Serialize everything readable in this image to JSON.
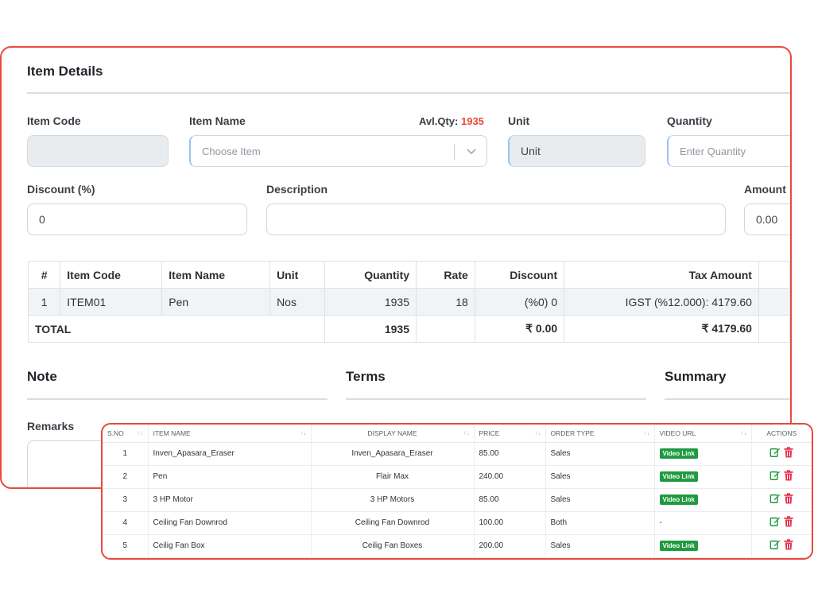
{
  "item_details": {
    "title": "Item Details",
    "labels": {
      "item_code": "Item Code",
      "item_name": "Item Name",
      "avl_qty_label": "Avl.Qty:",
      "avl_qty_value": "1935",
      "unit": "Unit",
      "quantity": "Quantity",
      "discount": "Discount (%)",
      "description": "Description",
      "amount": "Amount"
    },
    "fields": {
      "item_code_value": "",
      "item_name_placeholder": "Choose Item",
      "unit_value": "Unit",
      "quantity_placeholder": "Enter Quantity",
      "discount_value": "0",
      "description_value": "",
      "amount_value": "0.00"
    }
  },
  "item_table": {
    "headers": [
      "#",
      "Item Code",
      "Item Name",
      "Unit",
      "Quantity",
      "Rate",
      "Discount",
      "Tax Amount"
    ],
    "rows": [
      [
        "1",
        "ITEM01",
        "Pen",
        "Nos",
        "1935",
        "18",
        "(%0) 0",
        "IGST (%12.000): 4179.60"
      ]
    ],
    "total": {
      "label": "TOTAL",
      "quantity": "1935",
      "discount": "₹ 0.00",
      "tax": "₹ 4179.60"
    }
  },
  "sections": {
    "note": "Note",
    "terms": "Terms",
    "summary": "Summary",
    "remarks": "Remarks"
  },
  "list_table": {
    "headers": {
      "sno": "S.NO",
      "item_name": "ITEM NAME",
      "display_name": "DISPLAY NAME",
      "price": "PRICE",
      "order_type": "ORDER TYPE",
      "video_url": "VIDEO URL",
      "actions": "ACTIONS"
    },
    "rows": [
      {
        "sno": "1",
        "item_name": "Inven_Apasara_Eraser",
        "display_name": "Inven_Apasara_Eraser",
        "price": "85.00",
        "order_type": "Sales",
        "video": "Video Link"
      },
      {
        "sno": "2",
        "item_name": "Pen",
        "display_name": "Flair Max",
        "price": "240.00",
        "order_type": "Sales",
        "video": "Video Link"
      },
      {
        "sno": "3",
        "item_name": "3 HP Motor",
        "display_name": "3 HP Motors",
        "price": "85.00",
        "order_type": "Sales",
        "video": "Video Link"
      },
      {
        "sno": "4",
        "item_name": "Ceiling Fan Downrod",
        "display_name": "Ceiling Fan Downrod",
        "price": "100.00",
        "order_type": "Both",
        "video": "-"
      },
      {
        "sno": "5",
        "item_name": "Ceilig Fan Box",
        "display_name": "Ceilig Fan Boxes",
        "price": "200.00",
        "order_type": "Sales",
        "video": "Video Link"
      }
    ],
    "icons": {
      "edit": "edit-icon",
      "delete": "trash-icon",
      "sort": "sort-icon"
    }
  },
  "colors": {
    "accent": "#e8493b",
    "badge": "#1f9a3f",
    "edit_icon": "#1f9a3f",
    "delete_icon": "#e8344f"
  }
}
